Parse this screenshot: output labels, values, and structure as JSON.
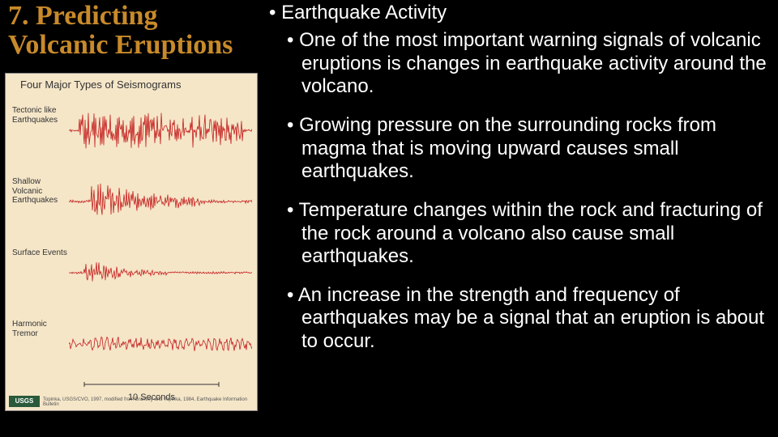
{
  "title": "7. Predicting Volcanic Eruptions",
  "figure": {
    "title": "Four Major Types of Seismograms",
    "background_color": "#f5e6c8",
    "wave_color": "#c41e1e",
    "rows": [
      {
        "label": "Tectonic like Earthquakes",
        "amplitude": 28,
        "density": 2.8,
        "burst_start": 0.05,
        "burst_end": 0.95,
        "decay": 0.2
      },
      {
        "label": "Shallow Volcanic Earthquakes",
        "amplitude": 30,
        "density": 2.2,
        "burst_start": 0.12,
        "burst_end": 0.75,
        "decay": 1.8
      },
      {
        "label": "Surface Events",
        "amplitude": 20,
        "density": 2.0,
        "burst_start": 0.08,
        "burst_end": 0.55,
        "decay": 2.2
      },
      {
        "label": "Harmonic Tremor",
        "amplitude": 10,
        "density": 0.9,
        "burst_start": 0.0,
        "burst_end": 1.0,
        "decay": 0.0
      }
    ],
    "scale_label": "10 Seconds",
    "badge": "USGS",
    "credit": "Topinka, USGS/CVO, 1997, modified from Brantley and Topinka, 1984, Earthquake Information Bulletin"
  },
  "content": {
    "heading": "Earthquake Activity",
    "bullets": [
      "One of the most important warning signals of volcanic eruptions is changes in earthquake activity around the volcano.",
      "Growing pressure on the surrounding rocks from magma that is moving upward causes small earthquakes.",
      "Temperature changes within the rock and fracturing of the rock around a volcano also cause small earthquakes.",
      "An increase in the strength and frequency of earthquakes may be a signal that an eruption is about to occur."
    ]
  },
  "colors": {
    "background": "#000000",
    "title_color": "#c88a2a",
    "text_color": "#ffffff"
  },
  "fonts": {
    "title_family": "Georgia, 'Times New Roman', serif",
    "title_size_pt": 26,
    "body_family": "Arial, Helvetica, sans-serif",
    "body_size_pt": 18
  }
}
